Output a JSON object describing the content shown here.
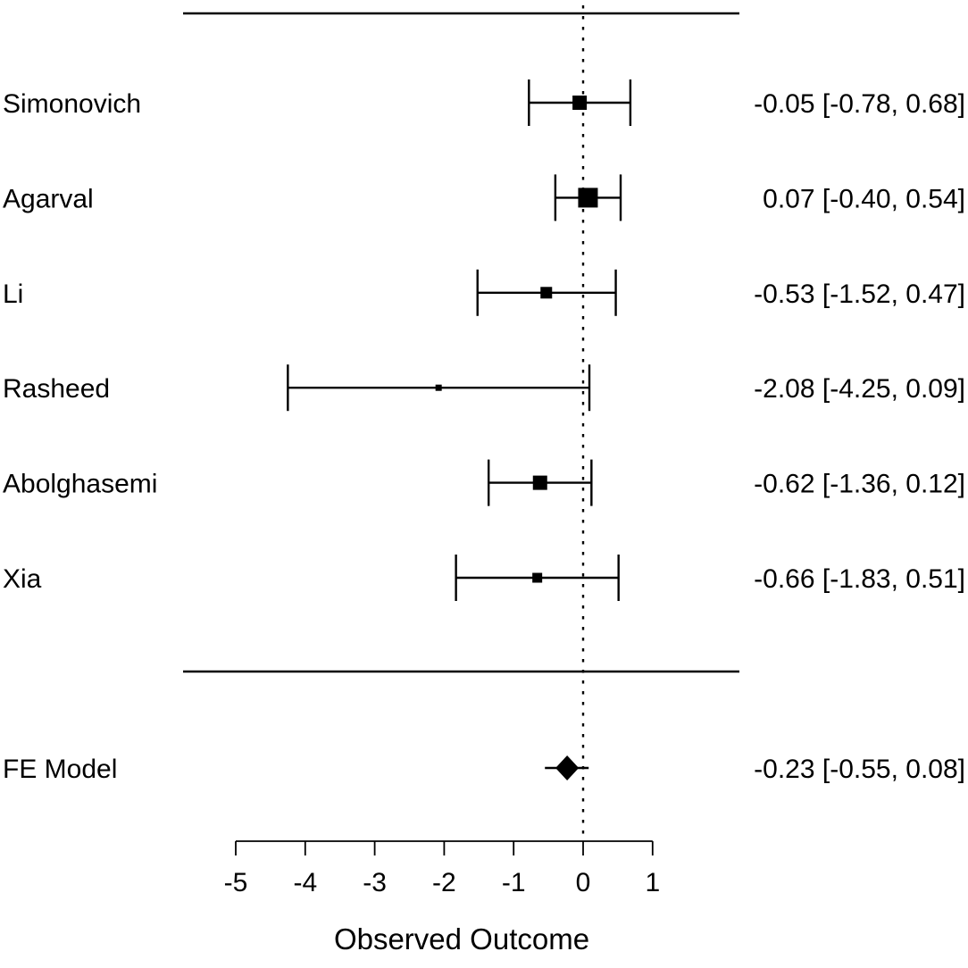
{
  "chart_data": {
    "type": "forest",
    "title": "",
    "xlabel": "Observed Outcome",
    "x_ticks": [
      -5,
      -4,
      -3,
      -2,
      -1,
      0,
      1
    ],
    "axis_range": [
      -5,
      1
    ],
    "reference_line": 0,
    "grid": false,
    "marker_color": "#000000",
    "line_color": "#000000",
    "studies": [
      {
        "label": "Simonovich",
        "estimate": -0.05,
        "ci_lower": -0.78,
        "ci_upper": 0.68,
        "annotation": "-0.05 [-0.78, 0.68]",
        "marker_size": 16
      },
      {
        "label": "Agarval",
        "estimate": 0.07,
        "ci_lower": -0.4,
        "ci_upper": 0.54,
        "annotation": "0.07 [-0.40, 0.54]",
        "marker_size": 22
      },
      {
        "label": "Li",
        "estimate": -0.53,
        "ci_lower": -1.52,
        "ci_upper": 0.47,
        "annotation": "-0.53 [-1.52, 0.47]",
        "marker_size": 13
      },
      {
        "label": "Rasheed",
        "estimate": -2.08,
        "ci_lower": -4.25,
        "ci_upper": 0.09,
        "annotation": "-2.08 [-4.25, 0.09]",
        "marker_size": 7
      },
      {
        "label": "Abolghasemi",
        "estimate": -0.62,
        "ci_lower": -1.36,
        "ci_upper": 0.12,
        "annotation": "-0.62 [-1.36, 0.12]",
        "marker_size": 16
      },
      {
        "label": "Xia",
        "estimate": -0.66,
        "ci_lower": -1.83,
        "ci_upper": 0.51,
        "annotation": "-0.66 [-1.83, 0.51]",
        "marker_size": 11
      }
    ],
    "summary": {
      "label": "FE Model",
      "estimate": -0.23,
      "ci_lower": -0.55,
      "ci_upper": 0.08,
      "annotation": "-0.23 [-0.55, 0.08]"
    }
  }
}
